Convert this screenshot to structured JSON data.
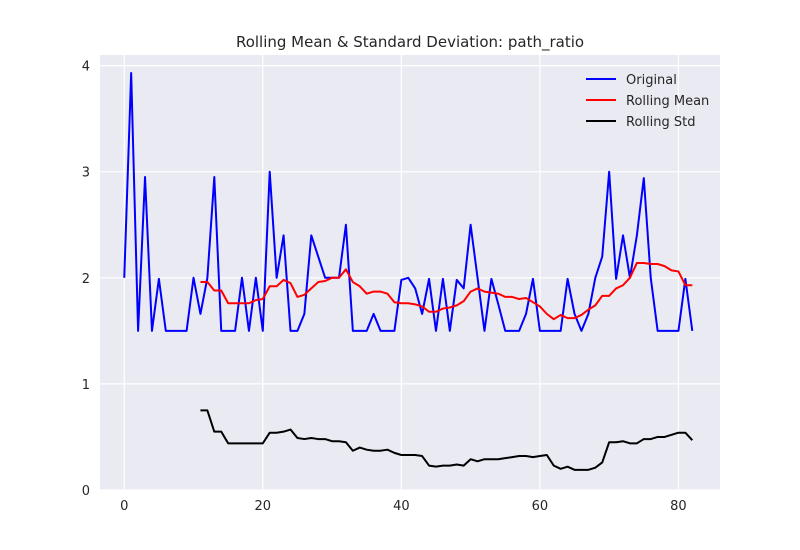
{
  "chart_data": {
    "type": "line",
    "title": "Rolling Mean & Standard Deviation: path_ratio",
    "xlabel": "",
    "ylabel": "",
    "xlim": [
      -3.5,
      86
    ],
    "ylim": [
      0,
      4.1
    ],
    "x_ticks": [
      0,
      20,
      40,
      60,
      80
    ],
    "y_ticks": [
      0,
      1,
      2,
      3,
      4
    ],
    "grid": true,
    "legend_position": "top-right",
    "colors": {
      "background": "#eaeaf2",
      "grid": "#ffffff",
      "original": "#0000ff",
      "rolling_mean": "#ff0000",
      "rolling_std": "#000000"
    },
    "series": [
      {
        "name": "Original",
        "color": "#0000ff",
        "x": [
          0,
          1,
          2,
          3,
          4,
          5,
          6,
          7,
          8,
          9,
          10,
          11,
          12,
          13,
          14,
          15,
          16,
          17,
          18,
          19,
          20,
          21,
          22,
          23,
          24,
          25,
          26,
          27,
          28,
          29,
          30,
          31,
          32,
          33,
          34,
          35,
          36,
          37,
          38,
          39,
          40,
          41,
          42,
          43,
          44,
          45,
          46,
          47,
          48,
          49,
          50,
          51,
          52,
          53,
          54,
          55,
          56,
          57,
          58,
          59,
          60,
          61,
          62,
          63,
          64,
          65,
          66,
          67,
          68,
          69,
          70,
          71,
          72,
          73,
          74,
          75,
          76,
          77,
          78,
          79,
          80,
          81,
          82
        ],
        "values": [
          2.0,
          3.93,
          1.5,
          2.95,
          1.5,
          1.99,
          1.5,
          1.5,
          1.5,
          1.5,
          2.0,
          1.66,
          2.0,
          2.95,
          1.5,
          1.5,
          1.5,
          2.0,
          1.5,
          2.0,
          1.5,
          3.0,
          2.0,
          2.4,
          1.5,
          1.5,
          1.66,
          2.4,
          2.2,
          2.0,
          2.0,
          2.0,
          2.5,
          1.5,
          1.5,
          1.5,
          1.66,
          1.5,
          1.5,
          1.5,
          1.98,
          2.0,
          1.9,
          1.66,
          1.99,
          1.5,
          1.99,
          1.5,
          1.98,
          1.9,
          2.5,
          2.0,
          1.5,
          1.99,
          1.75,
          1.5,
          1.5,
          1.5,
          1.66,
          1.99,
          1.5,
          1.5,
          1.5,
          1.5,
          1.99,
          1.66,
          1.5,
          1.66,
          2.0,
          2.2,
          3.0,
          1.99,
          2.4,
          2.0,
          2.4,
          2.94,
          2.0,
          1.5,
          1.5,
          1.5,
          1.5,
          1.99,
          1.5
        ]
      },
      {
        "name": "Rolling Mean",
        "color": "#ff0000",
        "x": [
          11,
          12,
          13,
          14,
          15,
          16,
          17,
          18,
          19,
          20,
          21,
          22,
          23,
          24,
          25,
          26,
          27,
          28,
          29,
          30,
          31,
          32,
          33,
          34,
          35,
          36,
          37,
          38,
          39,
          40,
          41,
          42,
          43,
          44,
          45,
          46,
          47,
          48,
          49,
          50,
          51,
          52,
          53,
          54,
          55,
          56,
          57,
          58,
          59,
          60,
          61,
          62,
          63,
          64,
          65,
          66,
          67,
          68,
          69,
          70,
          71,
          72,
          73,
          74,
          75,
          76,
          77,
          78,
          79,
          80,
          81,
          82
        ],
        "values": [
          1.96,
          1.96,
          1.88,
          1.88,
          1.76,
          1.76,
          1.76,
          1.76,
          1.79,
          1.8,
          1.92,
          1.92,
          1.98,
          1.95,
          1.82,
          1.84,
          1.9,
          1.96,
          1.97,
          2.0,
          2.0,
          2.08,
          1.96,
          1.92,
          1.85,
          1.87,
          1.87,
          1.85,
          1.77,
          1.76,
          1.76,
          1.75,
          1.73,
          1.68,
          1.68,
          1.71,
          1.72,
          1.74,
          1.78,
          1.87,
          1.9,
          1.87,
          1.86,
          1.85,
          1.82,
          1.82,
          1.8,
          1.81,
          1.77,
          1.73,
          1.66,
          1.61,
          1.65,
          1.62,
          1.62,
          1.65,
          1.7,
          1.74,
          1.83,
          1.83,
          1.9,
          1.93,
          2.0,
          2.14,
          2.14,
          2.13,
          2.13,
          2.11,
          2.07,
          2.06,
          1.93,
          1.93
        ]
      },
      {
        "name": "Rolling Std",
        "color": "#000000",
        "x": [
          11,
          12,
          13,
          14,
          15,
          16,
          17,
          18,
          19,
          20,
          21,
          22,
          23,
          24,
          25,
          26,
          27,
          28,
          29,
          30,
          31,
          32,
          33,
          34,
          35,
          36,
          37,
          38,
          39,
          40,
          41,
          42,
          43,
          44,
          45,
          46,
          47,
          48,
          49,
          50,
          51,
          52,
          53,
          54,
          55,
          56,
          57,
          58,
          59,
          60,
          61,
          62,
          63,
          64,
          65,
          66,
          67,
          68,
          69,
          70,
          71,
          72,
          73,
          74,
          75,
          76,
          77,
          78,
          79,
          80,
          81,
          82
        ],
        "values": [
          0.75,
          0.75,
          0.55,
          0.55,
          0.44,
          0.44,
          0.44,
          0.44,
          0.44,
          0.44,
          0.54,
          0.54,
          0.55,
          0.57,
          0.49,
          0.48,
          0.49,
          0.48,
          0.48,
          0.46,
          0.46,
          0.45,
          0.37,
          0.4,
          0.38,
          0.37,
          0.37,
          0.38,
          0.35,
          0.33,
          0.33,
          0.33,
          0.32,
          0.23,
          0.22,
          0.23,
          0.23,
          0.24,
          0.23,
          0.29,
          0.27,
          0.29,
          0.29,
          0.29,
          0.3,
          0.31,
          0.32,
          0.32,
          0.31,
          0.32,
          0.33,
          0.23,
          0.2,
          0.22,
          0.19,
          0.19,
          0.19,
          0.21,
          0.26,
          0.45,
          0.45,
          0.46,
          0.44,
          0.44,
          0.48,
          0.48,
          0.5,
          0.5,
          0.52,
          0.54,
          0.54,
          0.47
        ]
      }
    ]
  }
}
